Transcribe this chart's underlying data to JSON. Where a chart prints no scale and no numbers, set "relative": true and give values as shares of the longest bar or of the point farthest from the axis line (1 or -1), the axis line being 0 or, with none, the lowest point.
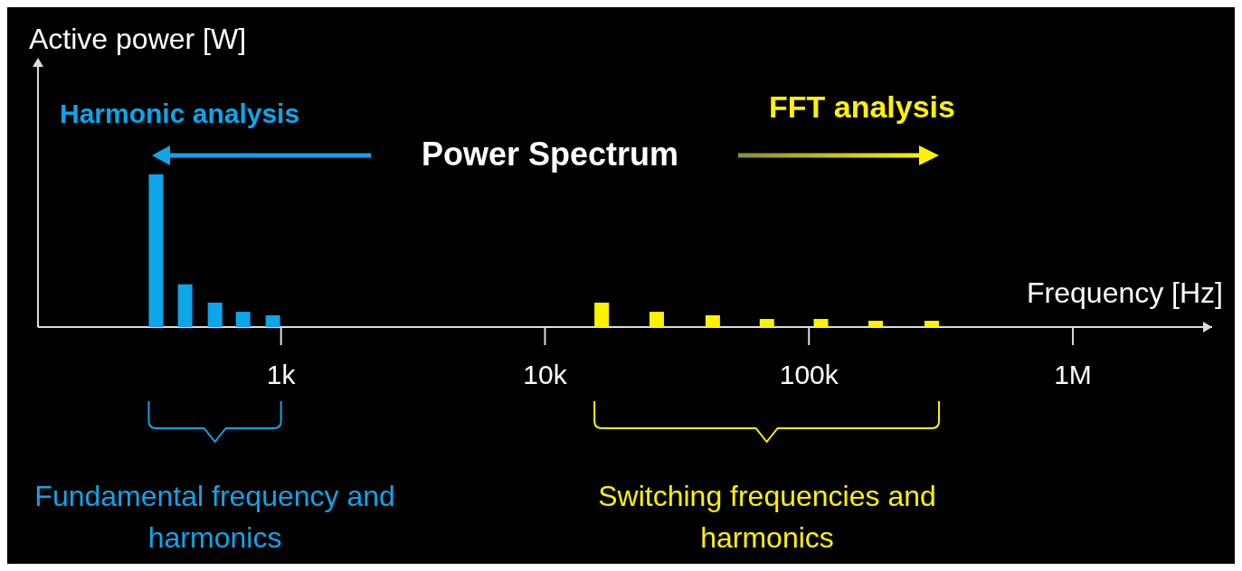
{
  "chart_data": {
    "type": "bar",
    "relative": true,
    "log": "x",
    "xlabel": "Frequency [Hz]",
    "ylabel": "Active power [W]",
    "xlim": [
      120,
      3370000
    ],
    "xticks": [
      {
        "value": 1000,
        "label": "1k"
      },
      {
        "value": 10000,
        "label": "10k"
      },
      {
        "value": 100000,
        "label": "100k"
      },
      {
        "value": 1000000,
        "label": "1M"
      }
    ],
    "series": [
      {
        "color": "#0ea5e9",
        "x": [
          336,
          433,
          562,
          718,
          931
        ],
        "values": [
          1,
          0.28,
          0.16,
          0.1,
          0.077
        ]
      },
      {
        "color": "#fff200",
        "x": [
          16400,
          26500,
          43200,
          69300,
          111000,
          179000,
          292000
        ],
        "values": [
          0.16,
          0.1,
          0.077,
          0.053,
          0.053,
          0.041,
          0.041
        ]
      }
    ],
    "annotations": [
      "Harmonic analysis",
      "Power Spectrum",
      "FFT analysis",
      "Fundamental frequency and harmonics",
      "Switching frequencies and harmonics"
    ]
  }
}
